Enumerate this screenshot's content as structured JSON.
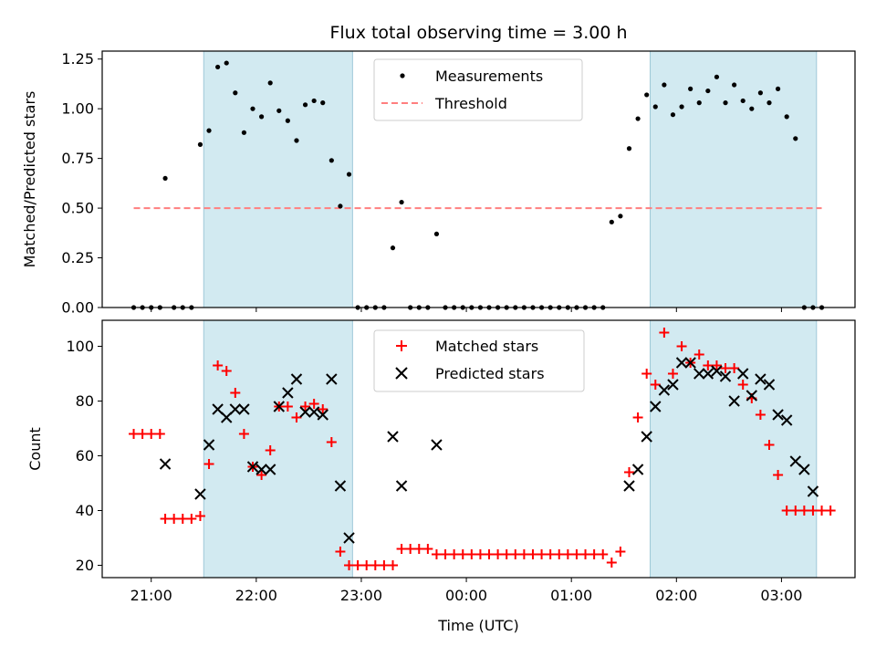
{
  "chart_data": [
    {
      "type": "scatter",
      "title": "Flux total observing time = 3.00 h",
      "xlabel": "",
      "ylabel": "Matched/Predicted stars",
      "ylim": [
        0,
        1.29
      ],
      "yticks": [
        "0.00",
        "0.25",
        "0.50",
        "0.75",
        "1.00",
        "1.25"
      ],
      "x_time_range": [
        "20:32",
        "03:42"
      ],
      "shaded_intervals": [
        [
          "21:30",
          "22:55"
        ],
        [
          "01:45",
          "03:20"
        ]
      ],
      "shade_color": "#add8e6",
      "legend_position": "upper center",
      "series": [
        {
          "name": "Measurements",
          "marker": "dot",
          "color": "#000000",
          "x": [
            "20:50",
            "20:55",
            "21:00",
            "21:05",
            "21:08",
            "21:13",
            "21:18",
            "21:23",
            "21:28",
            "21:33",
            "21:38",
            "21:43",
            "21:48",
            "21:53",
            "21:58",
            "22:03",
            "22:08",
            "22:13",
            "22:18",
            "22:23",
            "22:28",
            "22:33",
            "22:38",
            "22:43",
            "22:48",
            "22:53",
            "22:58",
            "23:03",
            "23:08",
            "23:13",
            "23:18",
            "23:23",
            "23:28",
            "23:33",
            "23:38",
            "23:43",
            "23:48",
            "23:53",
            "23:58",
            "00:03",
            "00:08",
            "00:13",
            "00:18",
            "00:23",
            "00:28",
            "00:33",
            "00:38",
            "00:43",
            "00:48",
            "00:53",
            "00:58",
            "01:03",
            "01:08",
            "01:13",
            "01:18",
            "01:23",
            "01:28",
            "01:33",
            "01:38",
            "01:43",
            "01:48",
            "01:53",
            "01:58",
            "02:03",
            "02:08",
            "02:13",
            "02:18",
            "02:23",
            "02:28",
            "02:33",
            "02:38",
            "02:43",
            "02:48",
            "02:53",
            "02:58",
            "03:03",
            "03:08",
            "03:13",
            "03:18",
            "03:23"
          ],
          "values": [
            0,
            0,
            0,
            0,
            0.65,
            0,
            0,
            0,
            0.82,
            0.89,
            1.21,
            1.23,
            1.08,
            0.88,
            1.0,
            0.96,
            1.13,
            0.99,
            0.94,
            0.84,
            1.02,
            1.04,
            1.03,
            0.74,
            0.51,
            0.67,
            0,
            0,
            0,
            0,
            0.3,
            0.53,
            0,
            0,
            0,
            0.37,
            0,
            0,
            0,
            0,
            0,
            0,
            0,
            0,
            0,
            0,
            0,
            0,
            0,
            0,
            0,
            0,
            0,
            0,
            0,
            0.43,
            0.46,
            0.8,
            0.95,
            1.07,
            1.01,
            1.12,
            0.97,
            1.01,
            1.1,
            1.03,
            1.09,
            1.16,
            1.03,
            1.12,
            1.04,
            1.0,
            1.08,
            1.03,
            1.1,
            0.96,
            0.85,
            0,
            0,
            0
          ]
        },
        {
          "name": "Threshold",
          "style": "dashed",
          "color": "#ff7f7f",
          "x": [
            "20:50",
            "03:23"
          ],
          "values": [
            0.5,
            0.5
          ]
        }
      ]
    },
    {
      "type": "scatter",
      "title": "",
      "xlabel": "Time (UTC)",
      "ylabel": "Count",
      "ylim": [
        15.5,
        109.5
      ],
      "yticks": [
        "20",
        "40",
        "60",
        "80",
        "100"
      ],
      "xticks": [
        "21:00",
        "22:00",
        "23:00",
        "00:00",
        "01:00",
        "02:00",
        "03:00"
      ],
      "x_time_range": [
        "20:32",
        "03:42"
      ],
      "shaded_intervals": [
        [
          "21:30",
          "22:55"
        ],
        [
          "01:45",
          "03:20"
        ]
      ],
      "shade_color": "#add8e6",
      "legend_position": "upper center",
      "series": [
        {
          "name": "Matched stars",
          "marker": "plus",
          "color": "#ff0000",
          "x": [
            "20:50",
            "20:55",
            "21:00",
            "21:05",
            "21:08",
            "21:13",
            "21:18",
            "21:23",
            "21:28",
            "21:33",
            "21:38",
            "21:43",
            "21:48",
            "21:53",
            "21:58",
            "22:03",
            "22:08",
            "22:13",
            "22:18",
            "22:23",
            "22:28",
            "22:33",
            "22:38",
            "22:43",
            "22:48",
            "22:53",
            "22:58",
            "23:03",
            "23:08",
            "23:13",
            "23:18",
            "23:23",
            "23:28",
            "23:33",
            "23:38",
            "23:43",
            "23:48",
            "23:53",
            "23:58",
            "00:03",
            "00:08",
            "00:13",
            "00:18",
            "00:23",
            "00:28",
            "00:33",
            "00:38",
            "00:43",
            "00:48",
            "00:53",
            "00:58",
            "01:03",
            "01:08",
            "01:13",
            "01:18",
            "01:23",
            "01:28",
            "01:33",
            "01:38",
            "01:43",
            "01:48",
            "01:53",
            "01:58",
            "02:03",
            "02:08",
            "02:13",
            "02:18",
            "02:23",
            "02:28",
            "02:33",
            "02:38",
            "02:43",
            "02:48",
            "02:53",
            "02:58",
            "03:03",
            "03:08",
            "03:13",
            "03:18",
            "03:23",
            "03:28"
          ],
          "values": [
            68,
            68,
            68,
            68,
            37,
            37,
            37,
            37,
            38,
            57,
            93,
            91,
            83,
            68,
            56,
            53,
            62,
            78,
            78,
            74,
            78,
            79,
            77,
            65,
            25,
            20,
            20,
            20,
            20,
            20,
            20,
            26,
            26,
            26,
            26,
            24,
            24,
            24,
            24,
            24,
            24,
            24,
            24,
            24,
            24,
            24,
            24,
            24,
            24,
            24,
            24,
            24,
            24,
            24,
            24,
            21,
            25,
            54,
            74,
            90,
            86,
            105,
            90,
            100,
            94,
            97,
            93,
            93,
            92,
            92,
            86,
            81,
            75,
            64,
            53,
            40,
            40,
            40,
            40,
            40,
            40
          ]
        },
        {
          "name": "Predicted stars",
          "marker": "x",
          "color": "#000000",
          "x": [
            "21:08",
            "21:28",
            "21:33",
            "21:38",
            "21:43",
            "21:48",
            "21:53",
            "21:58",
            "22:03",
            "22:08",
            "22:13",
            "22:18",
            "22:23",
            "22:28",
            "22:33",
            "22:38",
            "22:43",
            "22:48",
            "22:53",
            "23:18",
            "23:23",
            "23:43",
            "01:33",
            "01:38",
            "01:43",
            "01:48",
            "01:53",
            "01:58",
            "02:03",
            "02:08",
            "02:13",
            "02:18",
            "02:23",
            "02:28",
            "02:33",
            "02:38",
            "02:43",
            "02:48",
            "02:53",
            "02:58",
            "03:03",
            "03:08",
            "03:13",
            "03:18"
          ],
          "values": [
            57,
            46,
            64,
            77,
            74,
            77,
            77,
            56,
            55,
            55,
            78,
            83,
            88,
            76,
            76,
            75,
            88,
            49,
            30,
            67,
            49,
            64,
            49,
            55,
            67,
            78,
            84,
            86,
            94,
            94,
            90,
            90,
            91,
            89,
            80,
            90,
            82,
            88,
            86,
            75,
            73,
            58,
            55,
            47
          ]
        }
      ]
    }
  ]
}
